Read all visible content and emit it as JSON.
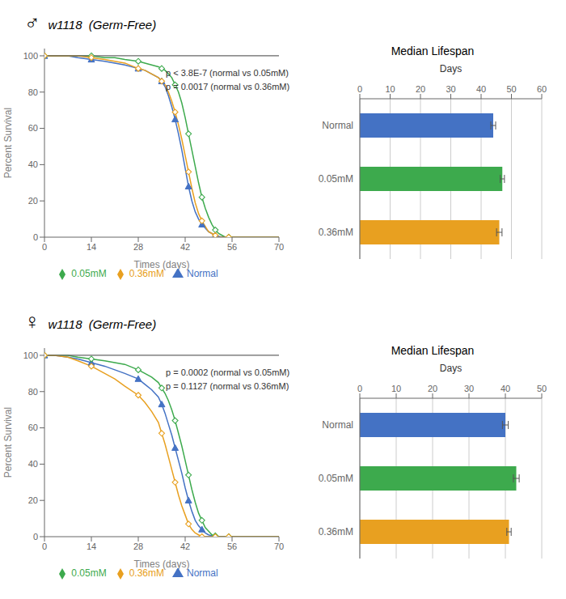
{
  "chart_data": [
    {
      "type": "line",
      "title": "♂",
      "subtitle": "w1118  (Germ-Free)",
      "x": [
        0,
        3,
        7,
        10,
        14,
        18,
        21,
        24,
        28,
        30,
        32,
        34,
        35,
        36,
        37,
        38,
        39,
        40,
        41,
        42,
        43,
        44,
        45,
        46,
        47,
        48,
        49,
        50,
        51,
        52,
        53,
        54,
        55,
        56,
        60,
        70
      ],
      "series": [
        {
          "name": "Normal",
          "color": "#4472C4",
          "marker": "triangle",
          "values": [
            100,
            100,
            100,
            99,
            98,
            97,
            96,
            95,
            93,
            92,
            90,
            88,
            86,
            83,
            78,
            72,
            65,
            57,
            48,
            38,
            28,
            20,
            14,
            10,
            7,
            5,
            3,
            2,
            1,
            0.5,
            0,
            0,
            0,
            0,
            0,
            0
          ]
        },
        {
          "name": "0.05mM",
          "color": "#3DAA4D",
          "marker": "diamond_open",
          "values": [
            100,
            100,
            100,
            100,
            100,
            99,
            99,
            98,
            97,
            96,
            95,
            94,
            93,
            92,
            90,
            88,
            84,
            80,
            74,
            66,
            57,
            48,
            39,
            30,
            22,
            16,
            11,
            7,
            4,
            2,
            1,
            0,
            0,
            0,
            0,
            0
          ]
        },
        {
          "name": "0.36mM",
          "color": "#E8A020",
          "marker": "diamond_open",
          "values": [
            100,
            100,
            100,
            100,
            99,
            98,
            97,
            96,
            93,
            92,
            90,
            88,
            86,
            84,
            80,
            75,
            69,
            62,
            54,
            45,
            36,
            27,
            19,
            13,
            9,
            6,
            3,
            2,
            1,
            0,
            0,
            0,
            0,
            0,
            0,
            0
          ]
        }
      ],
      "xlabel": "Times (days)",
      "ylabel": "Percent Survival",
      "xlim": [
        0,
        70
      ],
      "xticks": [
        0,
        14,
        28,
        42,
        56,
        70
      ],
      "ylim": [
        0,
        104
      ],
      "yticks": [
        0,
        20,
        40,
        60,
        80,
        100
      ],
      "hline": 100,
      "annotations": [
        "p < 3.8E-7 (normal vs 0.05mM)",
        "p = 0.0017 (normal vs 0.36mM)"
      ],
      "legend": "bottom"
    },
    {
      "type": "bar",
      "orientation": "horizontal",
      "title": "Median Lifespan",
      "xlabel": "Days",
      "categories": [
        "Normal",
        "0.05mM",
        "0.36mM"
      ],
      "values": [
        44.0,
        47.0,
        46.0
      ],
      "errors": [
        0.8,
        0.7,
        0.9
      ],
      "colors": [
        "#4472C4",
        "#3DAA4D",
        "#E8A020"
      ],
      "xlim": [
        0,
        60
      ],
      "xticks": [
        0,
        10,
        20,
        30,
        40,
        50,
        60
      ],
      "grid": true
    },
    {
      "type": "line",
      "title": "♀",
      "subtitle": "w1118  (Germ-Free)",
      "x": [
        0,
        3,
        7,
        10,
        14,
        18,
        21,
        24,
        28,
        30,
        32,
        34,
        35,
        36,
        37,
        38,
        39,
        40,
        41,
        42,
        43,
        44,
        45,
        46,
        47,
        48,
        49,
        50,
        51,
        52,
        53,
        54,
        55,
        56,
        60,
        70
      ],
      "series": [
        {
          "name": "Normal",
          "color": "#4472C4",
          "marker": "triangle",
          "values": [
            100,
            100,
            99,
            98,
            96,
            94,
            92,
            90,
            87,
            84,
            81,
            77,
            73,
            68,
            62,
            56,
            49,
            42,
            35,
            27,
            20,
            14,
            9,
            6,
            4,
            2,
            1,
            0.5,
            0,
            0,
            0,
            0,
            0,
            0,
            0,
            0
          ]
        },
        {
          "name": "0.05mM",
          "color": "#3DAA4D",
          "marker": "diamond_open",
          "values": [
            100,
            100,
            100,
            99,
            98,
            97,
            96,
            95,
            92,
            90,
            88,
            85,
            82,
            79,
            75,
            70,
            64,
            57,
            50,
            42,
            34,
            26,
            19,
            13,
            9,
            5,
            3,
            1,
            0.5,
            0,
            0,
            0,
            0,
            0,
            0,
            0
          ]
        },
        {
          "name": "0.36mM",
          "color": "#E8A020",
          "marker": "diamond_open",
          "values": [
            100,
            100,
            99,
            97,
            94,
            90,
            87,
            83,
            78,
            74,
            69,
            63,
            57,
            51,
            44,
            37,
            30,
            23,
            17,
            12,
            7,
            4,
            2,
            1,
            0,
            0,
            0,
            0,
            0,
            0,
            0,
            0,
            0,
            0,
            0,
            0
          ]
        }
      ],
      "xlabel": "Times (days)",
      "ylabel": "Percent Survival",
      "xlim": [
        0,
        70
      ],
      "xticks": [
        0,
        14,
        28,
        42,
        56,
        70
      ],
      "ylim": [
        0,
        104
      ],
      "yticks": [
        0,
        20,
        40,
        60,
        80,
        100
      ],
      "hline": 100,
      "annotations": [
        "p = 0.0002 (normal vs 0.05mM)",
        "p = 0.1127 (normal vs 0.36mM)"
      ],
      "legend": "bottom"
    },
    {
      "type": "bar",
      "orientation": "horizontal",
      "title": "Median Lifespan",
      "xlabel": "Days",
      "categories": [
        "Normal",
        "0.05mM",
        "0.36mM"
      ],
      "values": [
        40.0,
        43.0,
        41.0
      ],
      "errors": [
        0.8,
        0.8,
        0.6
      ],
      "colors": [
        "#4472C4",
        "#3DAA4D",
        "#E8A020"
      ],
      "xlim": [
        0,
        50
      ],
      "xticks": [
        0,
        10,
        20,
        30,
        40,
        50
      ],
      "grid": true
    }
  ]
}
